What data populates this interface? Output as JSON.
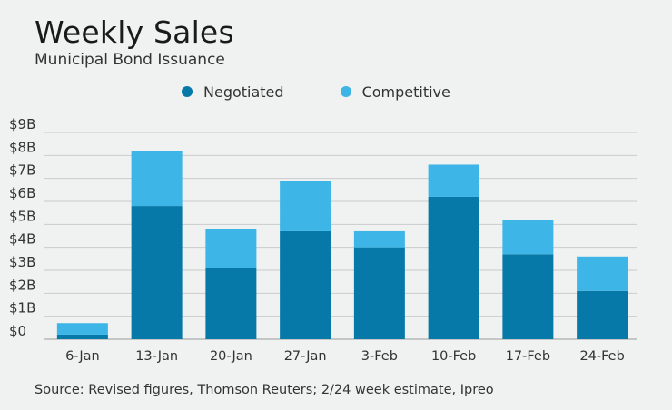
{
  "header": {
    "title": "Weekly Sales",
    "subtitle": "Municipal Bond Issuance"
  },
  "legend": [
    {
      "label": "Negotiated",
      "color": "#0779a8"
    },
    {
      "label": "Competitive",
      "color": "#3db5e7"
    }
  ],
  "footer": {
    "source": "Source: Revised figures, Thomson Reuters; 2/24 week estimate, Ipreo"
  },
  "chart_data": {
    "type": "bar",
    "stacked": true,
    "categories": [
      "6-Jan",
      "13-Jan",
      "20-Jan",
      "27-Jan",
      "3-Feb",
      "10-Feb",
      "17-Feb",
      "24-Feb"
    ],
    "series": [
      {
        "name": "Negotiated",
        "color": "#0779a8",
        "values": [
          0.2,
          5.8,
          3.1,
          4.7,
          4.0,
          6.2,
          3.7,
          2.1
        ]
      },
      {
        "name": "Competitive",
        "color": "#3db5e7",
        "values": [
          0.5,
          2.4,
          1.7,
          2.2,
          0.7,
          1.4,
          1.5,
          1.5
        ]
      }
    ],
    "ylim": [
      0,
      9
    ],
    "yticks": [
      0,
      1,
      2,
      3,
      4,
      5,
      6,
      7,
      8,
      9
    ],
    "ytick_labels": [
      "$0",
      "$1B",
      "$2B",
      "$3B",
      "$4B",
      "$5B",
      "$6B",
      "$7B",
      "$8B",
      "$9B"
    ],
    "grid": true,
    "legend_position": "top"
  }
}
